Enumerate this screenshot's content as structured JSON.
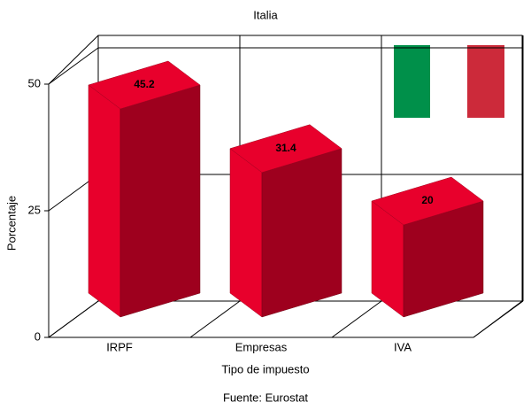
{
  "chart_data": {
    "type": "bar3d",
    "title": "Italia",
    "categories": [
      "IRPF",
      "Empresas",
      "IVA"
    ],
    "values": [
      45.2,
      31.4,
      20
    ],
    "color": "#e8002c",
    "ylim": [
      0,
      50
    ],
    "yticks": [
      0,
      25,
      50
    ],
    "xlabel": "Tipo de impuesto",
    "ylabel": "Porcentaje",
    "source": "Fuente: Eurostat",
    "grid": true
  }
}
